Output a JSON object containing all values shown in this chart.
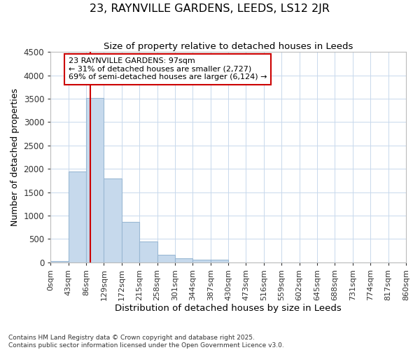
{
  "title1": "23, RAYNVILLE GARDENS, LEEDS, LS12 2JR",
  "title2": "Size of property relative to detached houses in Leeds",
  "xlabel": "Distribution of detached houses by size in Leeds",
  "ylabel": "Number of detached properties",
  "bin_labels": [
    "0sqm",
    "43sqm",
    "86sqm",
    "129sqm",
    "172sqm",
    "215sqm",
    "258sqm",
    "301sqm",
    "344sqm",
    "387sqm",
    "430sqm",
    "473sqm",
    "516sqm",
    "559sqm",
    "602sqm",
    "645sqm",
    "688sqm",
    "731sqm",
    "774sqm",
    "817sqm",
    "860sqm"
  ],
  "bar_values": [
    20,
    1950,
    3520,
    1800,
    870,
    450,
    165,
    90,
    55,
    55,
    0,
    0,
    0,
    0,
    0,
    0,
    0,
    0,
    0,
    0
  ],
  "bar_color": "#c6d9ec",
  "bar_edge_color": "#9ab8d4",
  "grid_color": "#c8d8ec",
  "background_color": "#ffffff",
  "vline_x": 97,
  "vline_color": "#cc0000",
  "ylim": [
    0,
    4500
  ],
  "yticks": [
    0,
    500,
    1000,
    1500,
    2000,
    2500,
    3000,
    3500,
    4000,
    4500
  ],
  "annotation_text": "23 RAYNVILLE GARDENS: 97sqm\n← 31% of detached houses are smaller (2,727)\n69% of semi-detached houses are larger (6,124) →",
  "annotation_box_color": "#ffffff",
  "annotation_box_edge": "#cc0000",
  "footnote1": "Contains HM Land Registry data © Crown copyright and database right 2025.",
  "footnote2": "Contains public sector information licensed under the Open Government Licence v3.0.",
  "bin_width": 43,
  "n_bars": 20
}
